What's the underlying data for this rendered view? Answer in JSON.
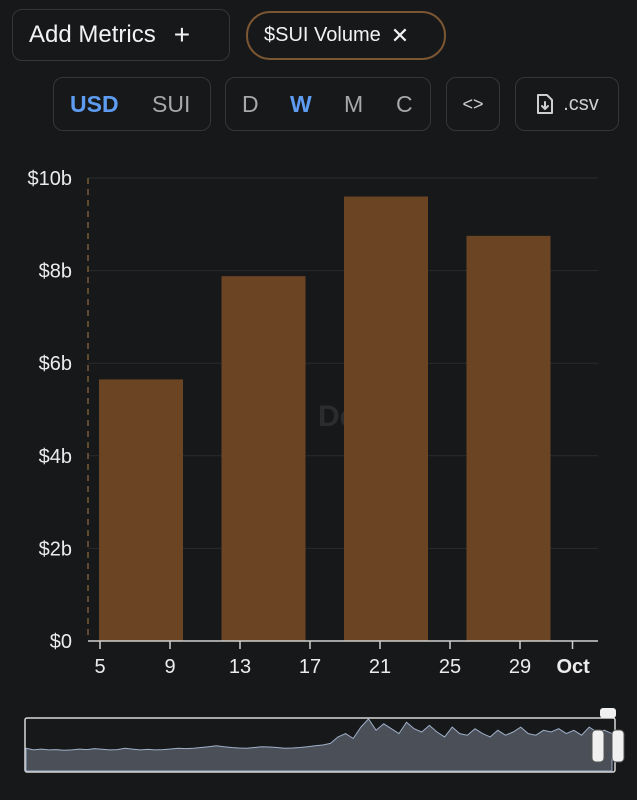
{
  "toolbar": {
    "add_metrics_label": "Add Metrics",
    "add_icon": "+",
    "metric_chip_label": "$SUI Volume",
    "metric_chip_close": "✕",
    "currency_options": [
      "USD",
      "SUI"
    ],
    "currency_selected": "USD",
    "period_options": [
      "D",
      "W",
      "M",
      "C"
    ],
    "period_selected": "W",
    "embed_label": "<>",
    "csv_label": ".csv"
  },
  "watermark": {
    "text": "Defi"
  },
  "colors": {
    "background": "#17181a",
    "bar": "#6b4423",
    "accent": "#5d9cf0",
    "chip_border": "#7a5632",
    "grid": "#2a2b2e"
  },
  "chart_data": {
    "type": "bar",
    "title": "",
    "xlabel": "",
    "ylabel": "",
    "ylim": [
      0,
      10
    ],
    "y_unit": "billion USD",
    "y_ticks": [
      0,
      2,
      4,
      6,
      8,
      10
    ],
    "y_tick_labels": [
      "$0",
      "$2b",
      "$4b",
      "$6b",
      "$8b",
      "$10b"
    ],
    "x_tick_labels": [
      "5",
      "9",
      "13",
      "17",
      "21",
      "25",
      "29",
      "Oct"
    ],
    "x_domain": [
      "Sep 1",
      "Oct 1"
    ],
    "x_ticks_dates": [
      "Sep 5",
      "Sep 9",
      "Sep 13",
      "Sep 17",
      "Sep 21",
      "Sep 25",
      "Sep 29",
      "Oct 1"
    ],
    "categories": [
      "Sep 5",
      "Sep 12",
      "Sep 19",
      "Sep 26"
    ],
    "series": [
      {
        "values": [
          5.65,
          7.88,
          9.6,
          8.75
        ]
      }
    ],
    "grid": "horizontal",
    "brush": {
      "type": "area",
      "values": [
        0.9,
        0.8,
        0.85,
        0.8,
        0.82,
        0.78,
        0.8,
        0.85,
        0.82,
        0.88,
        0.84,
        0.8,
        0.82,
        0.9,
        0.85,
        0.8,
        0.83,
        0.8,
        0.82,
        0.86,
        0.9,
        0.88,
        0.9,
        0.95,
        1.0,
        1.05,
        1.0,
        0.95,
        0.92,
        0.9,
        0.95,
        1.0,
        0.98,
        0.95,
        0.9,
        0.92,
        0.95,
        1.0,
        1.05,
        1.1,
        1.2,
        1.6,
        1.8,
        1.5,
        2.2,
        2.7,
        2.0,
        2.4,
        2.1,
        1.8,
        2.5,
        2.1,
        1.9,
        2.3,
        1.9,
        1.6,
        2.2,
        1.8,
        1.7,
        2.1,
        1.8,
        1.6,
        2.0,
        1.7,
        1.9,
        2.2,
        1.8,
        1.7,
        2.0,
        1.9,
        2.1,
        1.8,
        2.0,
        1.7,
        2.2,
        1.9,
        2.0,
        1.8
      ]
    }
  }
}
